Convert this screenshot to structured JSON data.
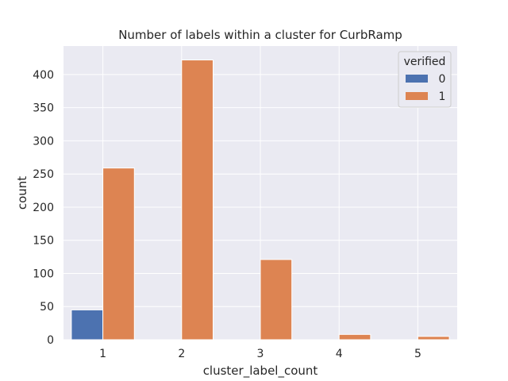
{
  "chart_data": {
    "type": "bar",
    "title": "Number of labels within a cluster for CurbRamp",
    "xlabel": "cluster_label_count",
    "ylabel": "count",
    "categories": [
      "1",
      "2",
      "3",
      "4",
      "5"
    ],
    "series": [
      {
        "name": "0",
        "color": "#4c72b0",
        "values": [
          45,
          0,
          0,
          0,
          0
        ]
      },
      {
        "name": "1",
        "color": "#dd8452",
        "values": [
          259,
          422,
          121,
          8,
          5
        ]
      }
    ],
    "ylim": [
      0,
      443
    ],
    "yticks": [
      0,
      50,
      100,
      150,
      200,
      250,
      300,
      350,
      400
    ],
    "grid": true,
    "legend": {
      "title": "verified",
      "placement": "top-right"
    },
    "colors": {
      "plot_background": "#eaeaf2",
      "grid": "#ffffff"
    }
  }
}
